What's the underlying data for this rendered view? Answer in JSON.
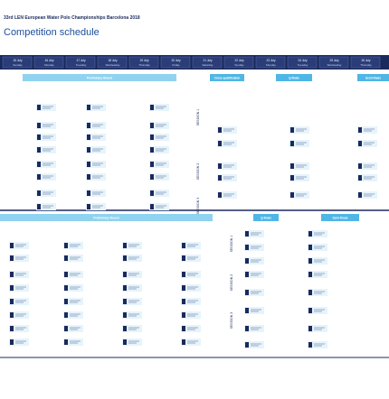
{
  "header": {
    "title": "33rd LEN European Water Polo Championships Barcelona 2018",
    "subtitle": "Competition schedule"
  },
  "days": [
    {
      "date": "15 July",
      "weekday": "Sunday"
    },
    {
      "date": "16 July",
      "weekday": "Monday"
    },
    {
      "date": "17 July",
      "weekday": "Tuesday"
    },
    {
      "date": "18 July",
      "weekday": "Wednesday"
    },
    {
      "date": "19 July",
      "weekday": "Thursday"
    },
    {
      "date": "20 July",
      "weekday": "Friday"
    },
    {
      "date": "21 July",
      "weekday": "Saturday"
    },
    {
      "date": "22 July",
      "weekday": "Sunday"
    },
    {
      "date": "23 July",
      "weekday": "Monday"
    },
    {
      "date": "24 July",
      "weekday": "Tuesday"
    },
    {
      "date": "25 July",
      "weekday": "Wednesday"
    },
    {
      "date": "26 July",
      "weekday": "Thursday"
    }
  ],
  "sections": [
    {
      "phases": [
        "Preliminary Round",
        "Cross qualification",
        "Q-finals",
        "Semi-finals"
      ],
      "sessions": [
        "SESSION 1",
        "SESSION 2",
        "SESSION 3"
      ]
    },
    {
      "phases": [
        "Preliminary Round",
        "Q-finals",
        "Semi-finals"
      ],
      "sessions": [
        "SESSION 1",
        "SESSION 2",
        "SESSION 3"
      ]
    }
  ]
}
